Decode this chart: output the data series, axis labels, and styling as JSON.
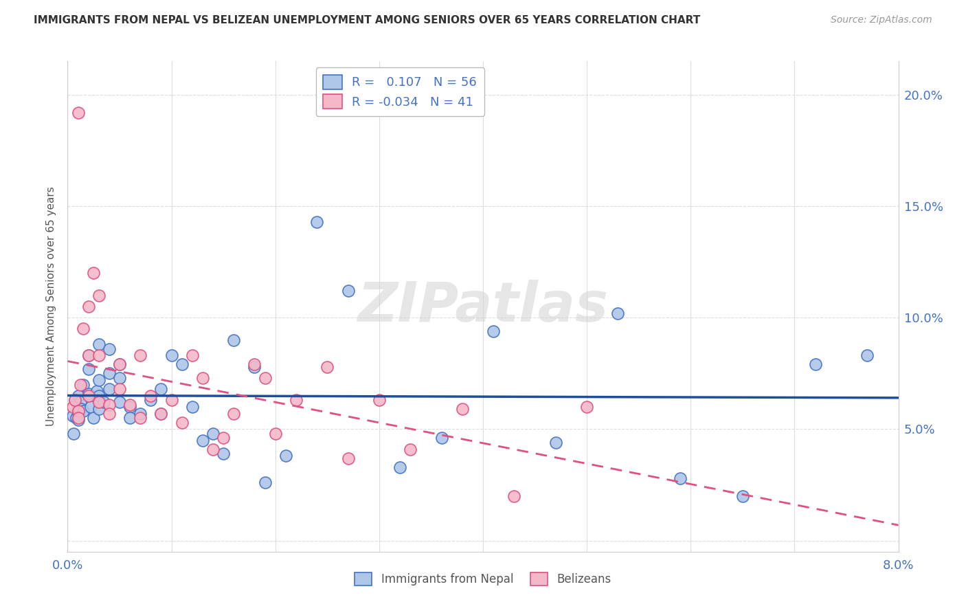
{
  "title": "IMMIGRANTS FROM NEPAL VS BELIZEAN UNEMPLOYMENT AMONG SENIORS OVER 65 YEARS CORRELATION CHART",
  "source": "Source: ZipAtlas.com",
  "ylabel": "Unemployment Among Seniors over 65 years",
  "xlim": [
    0.0,
    0.08
  ],
  "ylim": [
    -0.005,
    0.215
  ],
  "xtick_positions": [
    0.0,
    0.01,
    0.02,
    0.03,
    0.04,
    0.05,
    0.06,
    0.07,
    0.08
  ],
  "xtick_labels": [
    "0.0%",
    "",
    "",
    "",
    "",
    "",
    "",
    "",
    "8.0%"
  ],
  "ytick_positions": [
    0.0,
    0.05,
    0.1,
    0.15,
    0.2
  ],
  "ytick_labels": [
    "",
    "5.0%",
    "10.0%",
    "15.0%",
    "20.0%"
  ],
  "nepal_fill": "#aec6e8",
  "nepal_edge": "#4472C4",
  "belize_fill": "#f4b8c8",
  "belize_edge": "#E05080",
  "nepal_line_color": "#1F4E9C",
  "belize_line_color": "#E05080",
  "legend_label1": "R =   0.107   N = 56",
  "legend_label2": "R = -0.034   N = 41",
  "bottom_legend1": "Immigrants from Nepal",
  "bottom_legend2": "Belizeans",
  "watermark": "ZIPatlas",
  "background_color": "#FFFFFF",
  "grid_color": "#DDDDDD",
  "nepal_x": [
    0.0005,
    0.0006,
    0.0007,
    0.0008,
    0.001,
    0.001,
    0.001,
    0.001,
    0.0012,
    0.0013,
    0.0015,
    0.0015,
    0.002,
    0.002,
    0.002,
    0.0022,
    0.0025,
    0.0028,
    0.003,
    0.003,
    0.003,
    0.003,
    0.0035,
    0.004,
    0.004,
    0.004,
    0.005,
    0.005,
    0.005,
    0.006,
    0.006,
    0.007,
    0.008,
    0.009,
    0.009,
    0.01,
    0.011,
    0.012,
    0.013,
    0.014,
    0.015,
    0.016,
    0.018,
    0.019,
    0.021,
    0.024,
    0.027,
    0.032,
    0.036,
    0.041,
    0.047,
    0.053,
    0.059,
    0.065,
    0.072,
    0.077
  ],
  "nepal_y": [
    0.056,
    0.048,
    0.063,
    0.055,
    0.06,
    0.065,
    0.057,
    0.054,
    0.062,
    0.059,
    0.07,
    0.058,
    0.083,
    0.077,
    0.066,
    0.06,
    0.055,
    0.067,
    0.088,
    0.072,
    0.065,
    0.059,
    0.062,
    0.086,
    0.075,
    0.068,
    0.079,
    0.073,
    0.062,
    0.06,
    0.055,
    0.057,
    0.063,
    0.068,
    0.057,
    0.083,
    0.079,
    0.06,
    0.045,
    0.048,
    0.039,
    0.09,
    0.078,
    0.026,
    0.038,
    0.143,
    0.112,
    0.033,
    0.046,
    0.094,
    0.044,
    0.102,
    0.028,
    0.02,
    0.079,
    0.083
  ],
  "belize_x": [
    0.0005,
    0.0007,
    0.001,
    0.001,
    0.001,
    0.0012,
    0.0015,
    0.002,
    0.002,
    0.002,
    0.0025,
    0.003,
    0.003,
    0.003,
    0.004,
    0.004,
    0.005,
    0.005,
    0.006,
    0.007,
    0.007,
    0.008,
    0.009,
    0.01,
    0.011,
    0.012,
    0.013,
    0.014,
    0.015,
    0.016,
    0.018,
    0.019,
    0.02,
    0.022,
    0.025,
    0.027,
    0.03,
    0.033,
    0.038,
    0.043,
    0.05
  ],
  "belize_y": [
    0.06,
    0.063,
    0.058,
    0.055,
    0.192,
    0.07,
    0.095,
    0.105,
    0.083,
    0.065,
    0.12,
    0.11,
    0.083,
    0.062,
    0.061,
    0.057,
    0.079,
    0.068,
    0.061,
    0.083,
    0.055,
    0.065,
    0.057,
    0.063,
    0.053,
    0.083,
    0.073,
    0.041,
    0.046,
    0.057,
    0.079,
    0.073,
    0.048,
    0.063,
    0.078,
    0.037,
    0.063,
    0.041,
    0.059,
    0.02,
    0.06
  ]
}
